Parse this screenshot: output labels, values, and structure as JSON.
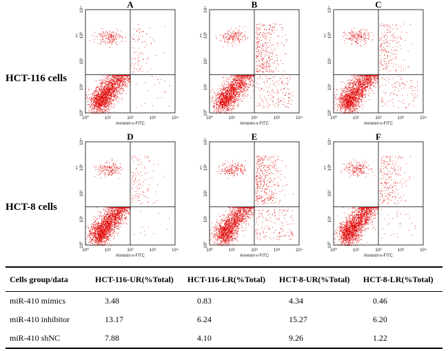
{
  "rows": [
    {
      "label": "HCT-116 cells"
    },
    {
      "label": "HCT-8 cells"
    }
  ],
  "chart_data": [
    {
      "type": "scatter",
      "panel": "A",
      "cell_line": "HCT-116 cells",
      "title": "A",
      "xlabel": "Annexin-v-FITC",
      "ylabel": "PI",
      "xscale": "log",
      "yscale": "log",
      "xlim": [
        1,
        10000
      ],
      "ylim": [
        1,
        10000
      ],
      "gates": {
        "x": 100,
        "y": 30
      },
      "quadrant_percent": {
        "UR": 3.48,
        "LR": 0.83
      },
      "tick_labels": [
        "10⁰",
        "10¹",
        "10²",
        "10³",
        "10⁴"
      ]
    },
    {
      "type": "scatter",
      "panel": "B",
      "cell_line": "HCT-116 cells",
      "title": "B",
      "xlabel": "Annexin-v-FITC",
      "ylabel": "PI",
      "xscale": "log",
      "yscale": "log",
      "xlim": [
        1,
        10000
      ],
      "ylim": [
        1,
        10000
      ],
      "gates": {
        "x": 100,
        "y": 30
      },
      "quadrant_percent": {
        "UR": 13.17,
        "LR": 6.24
      },
      "tick_labels": [
        "10⁰",
        "10¹",
        "10²",
        "10³",
        "10⁴"
      ]
    },
    {
      "type": "scatter",
      "panel": "C",
      "cell_line": "HCT-116 cells",
      "title": "C",
      "xlabel": "Annexin-v-FITC",
      "ylabel": "PI",
      "xscale": "log",
      "yscale": "log",
      "xlim": [
        1,
        10000
      ],
      "ylim": [
        1,
        10000
      ],
      "gates": {
        "x": 100,
        "y": 30
      },
      "quadrant_percent": {
        "UR": 7.88,
        "LR": 4.1
      },
      "tick_labels": [
        "10⁰",
        "10¹",
        "10²",
        "10³",
        "10⁴"
      ]
    },
    {
      "type": "scatter",
      "panel": "D",
      "cell_line": "HCT-8 cells",
      "title": "D",
      "xlabel": "Annexin-v-FITC",
      "ylabel": "PI",
      "xscale": "log",
      "yscale": "log",
      "xlim": [
        1,
        10000
      ],
      "ylim": [
        1,
        10000
      ],
      "gates": {
        "x": 100,
        "y": 30
      },
      "quadrant_percent": {
        "UR": 4.34,
        "LR": 0.46
      },
      "tick_labels": [
        "10⁰",
        "10¹",
        "10²",
        "10³",
        "10⁴"
      ]
    },
    {
      "type": "scatter",
      "panel": "E",
      "cell_line": "HCT-8 cells",
      "title": "E",
      "xlabel": "Annexin-v-FITC",
      "ylabel": "PI",
      "xscale": "log",
      "yscale": "log",
      "xlim": [
        1,
        10000
      ],
      "ylim": [
        1,
        10000
      ],
      "gates": {
        "x": 100,
        "y": 30
      },
      "quadrant_percent": {
        "UR": 15.27,
        "LR": 6.2
      },
      "tick_labels": [
        "10⁰",
        "10¹",
        "10²",
        "10³",
        "10⁴"
      ]
    },
    {
      "type": "scatter",
      "panel": "F",
      "cell_line": "HCT-8 cells",
      "title": "F",
      "xlabel": "Annexin-v-FITC",
      "ylabel": "PI",
      "xscale": "log",
      "yscale": "log",
      "xlim": [
        1,
        10000
      ],
      "ylim": [
        1,
        10000
      ],
      "gates": {
        "x": 100,
        "y": 30
      },
      "quadrant_percent": {
        "UR": 9.26,
        "LR": 1.22
      },
      "tick_labels": [
        "10⁰",
        "10¹",
        "10²",
        "10³",
        "10⁴"
      ]
    }
  ],
  "colors": {
    "dots": "#e00000",
    "axis": "#000000"
  },
  "table": {
    "headers": [
      "Cells group/data",
      "HCT-116-UR(%Total)",
      "HCT-116-LR(%Total)",
      "HCT-8-UR(%Total)",
      "HCT-8-LR(%Total)"
    ],
    "rows": [
      [
        "miR-410  mimics",
        "3.48",
        "0.83",
        "4.34",
        "0.46"
      ],
      [
        "miR-410  inhibitor",
        "13.17",
        "6.24",
        "15.27",
        "6.20"
      ],
      [
        "miR-410  shNC",
        "7.88",
        "4.10",
        "9.26",
        "1.22"
      ]
    ]
  }
}
